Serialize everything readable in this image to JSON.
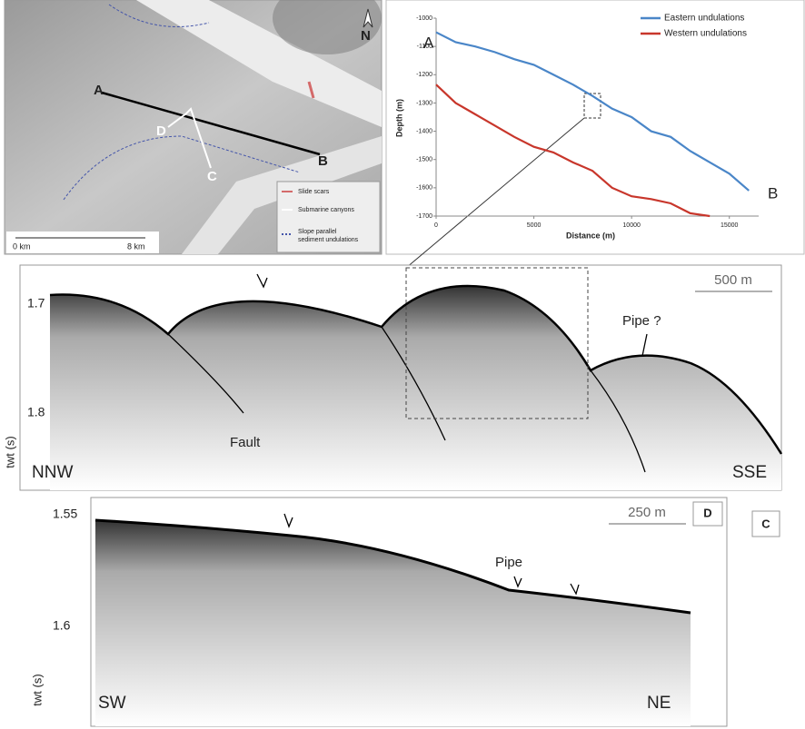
{
  "map": {
    "labels": [
      "A",
      "B",
      "C",
      "D"
    ],
    "north": "N",
    "scale_start": "0 km",
    "scale_end": "8 km",
    "legend": [
      "Slide scars",
      "Submarine canyons",
      "Slope parallel",
      "sediment undulations"
    ]
  },
  "chart_data": {
    "type": "line",
    "xlabel": "Distance (m)",
    "ylabel": "Depth (m)",
    "x": [
      0,
      1000,
      2000,
      3000,
      4000,
      5000,
      6000,
      7000,
      8000,
      9000,
      10000,
      11000,
      12000,
      13000,
      14000,
      15000,
      16000
    ],
    "series": [
      {
        "name": "Eastern undulations",
        "color": "#4a86c8",
        "values": [
          -1050,
          -1085,
          -1100,
          -1120,
          -1145,
          -1165,
          -1200,
          -1235,
          -1275,
          -1320,
          -1350,
          -1400,
          -1420,
          -1470,
          -1510,
          -1550,
          -1610
        ]
      },
      {
        "name": "Western undulations",
        "color": "#c8362b",
        "values": [
          -1235,
          -1300,
          -1340,
          -1380,
          -1420,
          -1455,
          -1475,
          -1510,
          -1540,
          -1600,
          -1630,
          -1640,
          -1655,
          -1690,
          -1700,
          null,
          null
        ]
      }
    ],
    "xlim": [
      0,
      16500
    ],
    "xticks": [
      0,
      5000,
      10000,
      15000
    ],
    "ylim": [
      -1000,
      -1700
    ],
    "yticks": [
      -1000,
      -1100,
      -1200,
      -1300,
      -1400,
      -1500,
      -1600,
      -1700
    ],
    "grid": false,
    "legend": "top-right",
    "annotations": [
      "A",
      "B"
    ]
  },
  "section_c": {
    "yticks": [
      "1.7",
      "1.8"
    ],
    "ylabel": "twt (s)",
    "scale": "500 m",
    "pipe": "Pipe ?",
    "fault": "Fault",
    "left": "NNW",
    "right": "SSE",
    "panel": "C"
  },
  "section_d": {
    "yticks": [
      "1.55",
      "1.6"
    ],
    "ylabel": "twt (s)",
    "scale": "250 m",
    "pipe": "Pipe",
    "left": "SW",
    "right": "NE",
    "panel": "D"
  }
}
